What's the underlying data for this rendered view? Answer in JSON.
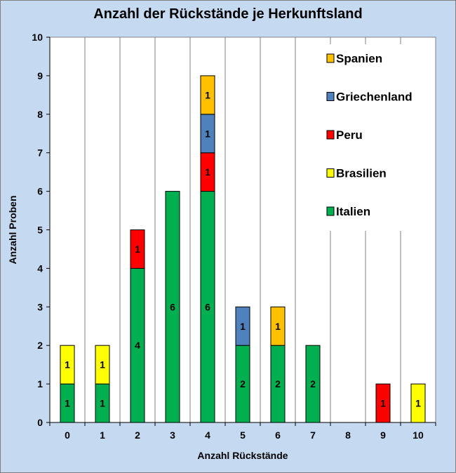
{
  "chart_data": {
    "type": "bar",
    "stacked": true,
    "title": "Anzahl der Rückstände je Herkunftsland",
    "xlabel": "Anzahl Rückstände",
    "ylabel": "Anzahl Proben",
    "categories": [
      "0",
      "1",
      "2",
      "3",
      "4",
      "5",
      "6",
      "7",
      "8",
      "9",
      "10"
    ],
    "ylim": [
      0,
      10
    ],
    "yticks": [
      "0",
      "1",
      "2",
      "3",
      "4",
      "5",
      "6",
      "7",
      "8",
      "9",
      "10"
    ],
    "grid": "vertical",
    "legend_position": "top-right",
    "series": [
      {
        "name": "Italien",
        "color": "#00b050",
        "values": [
          1,
          1,
          4,
          6,
          6,
          2,
          2,
          2,
          0,
          0,
          0
        ]
      },
      {
        "name": "Brasilien",
        "color": "#ffff00",
        "values": [
          1,
          1,
          0,
          0,
          0,
          0,
          0,
          0,
          0,
          0,
          1
        ]
      },
      {
        "name": "Peru",
        "color": "#ff0000",
        "values": [
          0,
          0,
          1,
          0,
          1,
          0,
          0,
          0,
          0,
          1,
          0
        ]
      },
      {
        "name": "Griechenland",
        "color": "#4f81bd",
        "values": [
          0,
          0,
          0,
          0,
          1,
          1,
          0,
          0,
          0,
          0,
          0
        ]
      },
      {
        "name": "Spanien",
        "color": "#ffc000",
        "values": [
          0,
          0,
          0,
          0,
          1,
          0,
          1,
          0,
          0,
          0,
          0
        ]
      }
    ],
    "legend_order": [
      "Spanien",
      "Griechenland",
      "Peru",
      "Brasilien",
      "Italien"
    ]
  }
}
